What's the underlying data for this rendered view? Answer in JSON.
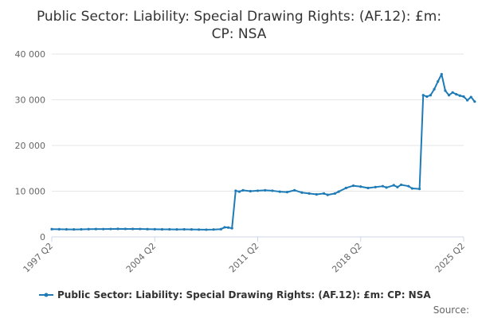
{
  "chart_data": {
    "type": "line",
    "title_line1": "Public Sector: Liability: Special Drawing Rights: (AF.12): £m:",
    "title_line2": "CP: NSA",
    "ylim": [
      0,
      40000
    ],
    "y_ticks": [
      {
        "value": 0,
        "label": "0"
      },
      {
        "value": 10000,
        "label": "10 000"
      },
      {
        "value": 20000,
        "label": "20 000"
      },
      {
        "value": 30000,
        "label": "30 000"
      },
      {
        "value": 40000,
        "label": "40 000"
      }
    ],
    "x_range": [
      "1997 Q2",
      "2025 Q2"
    ],
    "x_ticks": [
      "1997 Q2",
      "2004 Q2",
      "2011 Q2",
      "2018 Q2",
      "2025 Q2"
    ],
    "series": [
      {
        "name": "Public Sector: Liability: Special Drawing Rights: (AF.12): £m: CP: NSA",
        "color": "#1f7bb6",
        "points": [
          [
            "1997 Q2",
            1700
          ],
          [
            "1997 Q4",
            1680
          ],
          [
            "1998 Q2",
            1650
          ],
          [
            "1998 Q4",
            1640
          ],
          [
            "1999 Q2",
            1660
          ],
          [
            "1999 Q4",
            1700
          ],
          [
            "2000 Q2",
            1720
          ],
          [
            "2000 Q4",
            1710
          ],
          [
            "2001 Q2",
            1730
          ],
          [
            "2001 Q4",
            1760
          ],
          [
            "2002 Q2",
            1750
          ],
          [
            "2002 Q4",
            1740
          ],
          [
            "2003 Q2",
            1730
          ],
          [
            "2003 Q4",
            1700
          ],
          [
            "2004 Q2",
            1680
          ],
          [
            "2004 Q4",
            1650
          ],
          [
            "2005 Q2",
            1660
          ],
          [
            "2005 Q4",
            1640
          ],
          [
            "2006 Q2",
            1650
          ],
          [
            "2006 Q4",
            1630
          ],
          [
            "2007 Q2",
            1600
          ],
          [
            "2007 Q4",
            1580
          ],
          [
            "2008 Q2",
            1620
          ],
          [
            "2008 Q4",
            1700
          ],
          [
            "2009 Q1",
            2100
          ],
          [
            "2009 Q2",
            2050
          ],
          [
            "2009 Q3",
            1900
          ],
          [
            "2009 Q4",
            10100
          ],
          [
            "2010 Q1",
            9900
          ],
          [
            "2010 Q2",
            10200
          ],
          [
            "2010 Q4",
            10000
          ],
          [
            "2011 Q2",
            10100
          ],
          [
            "2011 Q4",
            10200
          ],
          [
            "2012 Q2",
            10100
          ],
          [
            "2012 Q4",
            9900
          ],
          [
            "2013 Q2",
            9800
          ],
          [
            "2013 Q4",
            10200
          ],
          [
            "2014 Q2",
            9700
          ],
          [
            "2014 Q4",
            9500
          ],
          [
            "2015 Q2",
            9300
          ],
          [
            "2015 Q4",
            9500
          ],
          [
            "2016 Q1",
            9200
          ],
          [
            "2016 Q3",
            9500
          ],
          [
            "2016 Q4",
            9900
          ],
          [
            "2017 Q2",
            10700
          ],
          [
            "2017 Q4",
            11200
          ],
          [
            "2018 Q2",
            11000
          ],
          [
            "2018 Q4",
            10700
          ],
          [
            "2019 Q2",
            10900
          ],
          [
            "2019 Q4",
            11100
          ],
          [
            "2020 Q1",
            10800
          ],
          [
            "2020 Q3",
            11300
          ],
          [
            "2020 Q4",
            10900
          ],
          [
            "2021 Q1",
            11400
          ],
          [
            "2021 Q3",
            11100
          ],
          [
            "2021 Q4",
            10600
          ],
          [
            "2022 Q2",
            10500
          ],
          [
            "2022 Q3",
            31000
          ],
          [
            "2022 Q4",
            30700
          ],
          [
            "2023 Q1",
            31000
          ],
          [
            "2023 Q2",
            32300
          ],
          [
            "2023 Q3",
            34000
          ],
          [
            "2023 Q4",
            35600
          ],
          [
            "2024 Q1",
            32000
          ],
          [
            "2024 Q2",
            31000
          ],
          [
            "2024 Q3",
            31600
          ],
          [
            "2024 Q4",
            31200
          ],
          [
            "2025 Q1",
            30900
          ],
          [
            "2025 Q2",
            30700
          ],
          [
            "2025 Q3",
            29900
          ],
          [
            "2025 Q4",
            30600
          ],
          [
            "2026 Q1",
            29600
          ]
        ]
      }
    ],
    "legend": {
      "position": "bottom-center",
      "label": "Public Sector: Liability: Special Drawing Rights: (AF.12): £m: CP: NSA"
    },
    "source_label": "Source:",
    "grid": true
  }
}
